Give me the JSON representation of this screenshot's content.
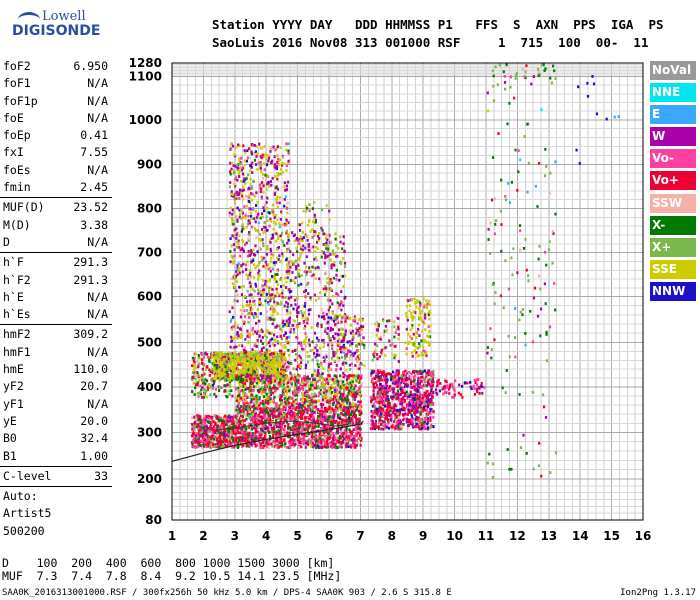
{
  "logo": {
    "line1": "Lowell",
    "line2": "DIGISONDE"
  },
  "header": {
    "line1": "Station YYYY DAY   DDD HHMMSS P1   FFS  S  AXN  PPS  IGA  PS",
    "line2": "SaoLuis 2016 Nov08 313 001000 RSF     1  715  100  00-  11"
  },
  "params": [
    {
      "label": "foF2",
      "value": "6.950"
    },
    {
      "label": "foF1",
      "value": "N/A"
    },
    {
      "label": "foF1p",
      "value": "N/A"
    },
    {
      "label": "foE",
      "value": "N/A"
    },
    {
      "label": "foEp",
      "value": "0.41"
    },
    {
      "label": "fxI",
      "value": "7.55"
    },
    {
      "label": "foEs",
      "value": "N/A"
    },
    {
      "label": "fmin",
      "value": "2.45"
    },
    {
      "sep": true
    },
    {
      "label": "MUF(D)",
      "value": "23.52"
    },
    {
      "label": "M(D)",
      "value": "3.38"
    },
    {
      "label": "D",
      "value": "N/A"
    },
    {
      "sep": true
    },
    {
      "label": "h`F",
      "value": "291.3"
    },
    {
      "label": "h`F2",
      "value": "291.3"
    },
    {
      "label": "h`E",
      "value": "N/A"
    },
    {
      "label": "h`Es",
      "value": "N/A"
    },
    {
      "sep": true
    },
    {
      "label": "hmF2",
      "value": "309.2"
    },
    {
      "label": "hmF1",
      "value": "N/A"
    },
    {
      "label": "hmE",
      "value": "110.0"
    },
    {
      "label": "yF2",
      "value": "20.7"
    },
    {
      "label": "yF1",
      "value": "N/A"
    },
    {
      "label": "yE",
      "value": "20.0"
    },
    {
      "label": "B0",
      "value": "32.4"
    },
    {
      "label": "B1",
      "value": "1.00"
    },
    {
      "sep": true
    },
    {
      "label": "C-level",
      "value": "33"
    },
    {
      "sep": true
    },
    {
      "text": "Auto:"
    },
    {
      "text": "Artist5"
    },
    {
      "text": "500200"
    }
  ],
  "legend": [
    {
      "label": "NoVal",
      "color": "#999999"
    },
    {
      "label": "NNE",
      "color": "#00e5ee"
    },
    {
      "label": "E",
      "color": "#3aa8ff"
    },
    {
      "label": "W",
      "color": "#aa00aa"
    },
    {
      "label": "Vo-",
      "color": "#ff3fa0"
    },
    {
      "label": "Vo+",
      "color": "#ee0033"
    },
    {
      "label": "SSW",
      "color": "#f7b0a8"
    },
    {
      "label": "X-",
      "color": "#007a00"
    },
    {
      "label": "X+",
      "color": "#7ab84c"
    },
    {
      "label": "SSE",
      "color": "#cccc00"
    },
    {
      "label": "NNW",
      "color": "#1a10c8"
    }
  ],
  "dmuf": {
    "line1": "D    100  200  400  600  800 1000 1500 3000 [km]",
    "line2": "MUF  7.3  7.4  7.8  8.4  9.2 10.5 14.1 23.5 [MHz]"
  },
  "footer": {
    "left": "SAA0K_2016313001000.RSF / 300fx256h 50 kHz 5.0 km / DPS-4 SAA0K 903 / 2.6 S 315.8 E",
    "right": "Ion2Png 1.3.17"
  },
  "chart_data": {
    "type": "scatter",
    "title": "",
    "xlabel": "",
    "ylabel": "",
    "xlim": [
      1,
      16
    ],
    "ylim": [
      80,
      1280
    ],
    "x_ticks": [
      1,
      2,
      3,
      4,
      5,
      6,
      7,
      8,
      9,
      10,
      11,
      12,
      13,
      14,
      15,
      16
    ],
    "y_ticks": [
      80,
      200,
      300,
      400,
      500,
      600,
      700,
      800,
      900,
      1000,
      1100,
      1280
    ],
    "grid": true,
    "legend_position": "right",
    "ordinate_scale": "ionogram",
    "scale_breaks": [
      {
        "h": 80,
        "f": 0.0
      },
      {
        "h": 200,
        "f": 0.0897
      },
      {
        "h": 300,
        "f": 0.1917
      },
      {
        "h": 400,
        "f": 0.291
      },
      {
        "h": 500,
        "f": 0.3886
      },
      {
        "h": 600,
        "f": 0.489
      },
      {
        "h": 700,
        "f": 0.5848
      },
      {
        "h": 800,
        "f": 0.6817
      },
      {
        "h": 900,
        "f": 0.7781
      },
      {
        "h": 1000,
        "f": 0.8757
      },
      {
        "h": 1100,
        "f": 0.9707
      },
      {
        "h": 1280,
        "f": 1.0
      }
    ],
    "echo_regions": [
      {
        "f": [
          1.6,
          3.0
        ],
        "h": [
          270,
          340
        ],
        "n": 500,
        "mix": [
          0,
          0,
          0,
          0.12,
          0.22,
          0.38,
          0.03,
          0.12,
          0.1,
          0.02,
          0.01
        ]
      },
      {
        "f": [
          1.6,
          2.9
        ],
        "h": [
          380,
          480
        ],
        "n": 220,
        "mix": [
          0,
          0,
          0,
          0.1,
          0.1,
          0.15,
          0.03,
          0.25,
          0.2,
          0.15,
          0.02
        ]
      },
      {
        "f": [
          2.3,
          4.6
        ],
        "h": [
          420,
          480
        ],
        "n": 900,
        "mix": [
          0,
          0,
          0,
          0.05,
          0.05,
          0.05,
          0.02,
          0.08,
          0.15,
          0.6,
          0.0
        ]
      },
      {
        "f": [
          2.8,
          4.7
        ],
        "h": [
          480,
          950
        ],
        "n": 850,
        "mix": [
          0.01,
          0.01,
          0.01,
          0.3,
          0.08,
          0.05,
          0.05,
          0.04,
          0.07,
          0.33,
          0.05
        ]
      },
      {
        "f": [
          3.0,
          7.0
        ],
        "h": [
          270,
          360
        ],
        "n": 1400,
        "mix": [
          0,
          0,
          0,
          0.1,
          0.22,
          0.4,
          0.02,
          0.14,
          0.09,
          0.02,
          0.01
        ]
      },
      {
        "f": [
          3.0,
          7.0
        ],
        "h": [
          360,
          430
        ],
        "n": 800,
        "mix": [
          0,
          0,
          0,
          0.1,
          0.15,
          0.2,
          0.03,
          0.18,
          0.16,
          0.18,
          0.0
        ]
      },
      {
        "f": [
          4.6,
          6.5
        ],
        "h": [
          430,
          750
        ],
        "n": 420,
        "mix": [
          0.01,
          0,
          0.01,
          0.35,
          0.1,
          0.08,
          0.05,
          0.05,
          0.1,
          0.2,
          0.05
        ]
      },
      {
        "f": [
          5.0,
          6.0
        ],
        "h": [
          700,
          820
        ],
        "n": 60,
        "mix": [
          0,
          0,
          0,
          0.2,
          0.05,
          0.05,
          0.05,
          0.05,
          0.1,
          0.5,
          0.0
        ]
      },
      {
        "f": [
          6.0,
          7.1
        ],
        "h": [
          440,
          560
        ],
        "n": 160,
        "mix": [
          0,
          0,
          0,
          0.35,
          0.1,
          0.1,
          0.05,
          0.05,
          0.1,
          0.2,
          0.05
        ]
      },
      {
        "f": [
          7.3,
          9.3
        ],
        "h": [
          310,
          440
        ],
        "n": 900,
        "mix": [
          0,
          0,
          0,
          0.2,
          0.2,
          0.35,
          0.05,
          0.05,
          0.05,
          0.0,
          0.1
        ]
      },
      {
        "f": [
          8.4,
          9.2
        ],
        "h": [
          470,
          600
        ],
        "n": 120,
        "mix": [
          0,
          0,
          0,
          0.1,
          0.05,
          0.05,
          0.05,
          0.05,
          0.1,
          0.6,
          0.0
        ]
      },
      {
        "f": [
          7.3,
          8.2
        ],
        "h": [
          460,
          560
        ],
        "n": 60,
        "mix": [
          0,
          0,
          0,
          0.3,
          0.1,
          0.1,
          0.1,
          0.1,
          0.1,
          0.2,
          0.0
        ]
      },
      {
        "f": [
          9.3,
          11.0
        ],
        "h": [
          380,
          420
        ],
        "n": 70,
        "mix": [
          0,
          0,
          0,
          0.1,
          0.3,
          0.5,
          0,
          0,
          0,
          0,
          0.1
        ]
      },
      {
        "f": [
          11.0,
          13.2
        ],
        "h": [
          200,
          1280
        ],
        "n": 170,
        "mix": [
          0.03,
          0.03,
          0.03,
          0.1,
          0.06,
          0.08,
          0.05,
          0.3,
          0.3,
          0.1,
          0.05
        ]
      },
      {
        "f": [
          13.8,
          14.6
        ],
        "h": [
          800,
          1220
        ],
        "n": 8,
        "mix": [
          0,
          0,
          0,
          0,
          0,
          0,
          0,
          0,
          0,
          0,
          1
        ]
      },
      {
        "f": [
          14.8,
          15.3
        ],
        "h": [
          1000,
          1100
        ],
        "n": 3,
        "mix": [
          0,
          0,
          0.5,
          0,
          0,
          0,
          0,
          0,
          0,
          0,
          0.5
        ]
      }
    ],
    "profile_curve": [
      [
        1,
        238
      ],
      [
        2,
        256
      ],
      [
        3,
        272
      ],
      [
        4,
        285
      ],
      [
        5,
        296
      ],
      [
        6,
        306
      ],
      [
        7,
        318
      ],
      [
        7.1,
        325
      ]
    ],
    "trace_curve": [
      [
        2.4,
        305
      ],
      [
        3.2,
        312
      ],
      [
        4.0,
        320
      ],
      [
        4.8,
        325
      ],
      [
        5.6,
        320
      ],
      [
        6.2,
        314
      ],
      [
        6.6,
        318
      ],
      [
        6.95,
        360
      ]
    ]
  }
}
